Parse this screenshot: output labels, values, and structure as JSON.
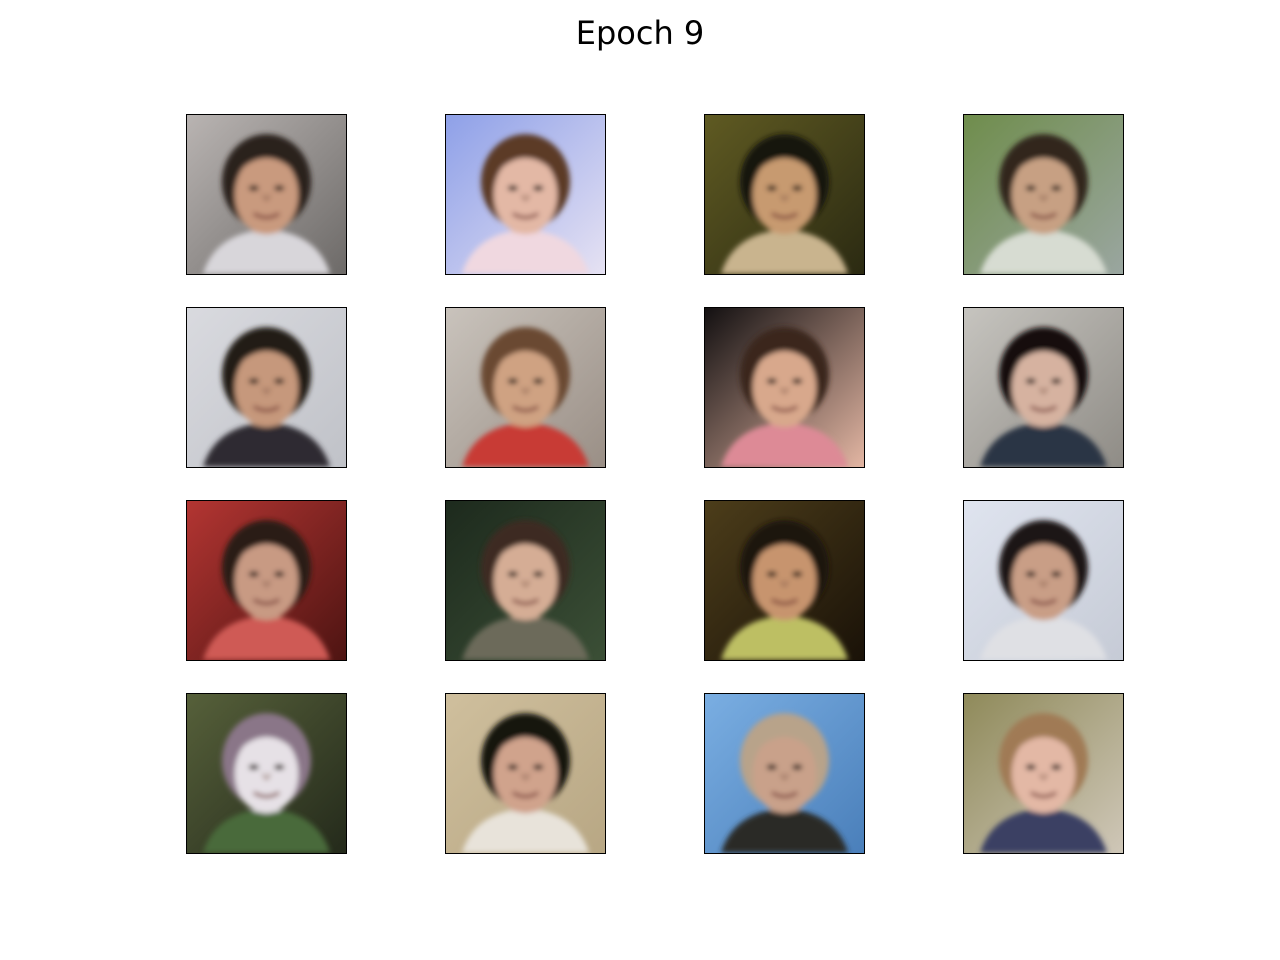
{
  "figure": {
    "title": "Epoch 9",
    "grid": {
      "rows": 4,
      "cols": 4
    },
    "samples": [
      {
        "bg": "#b9b4b2",
        "bg2": "#6d6a68",
        "skin": "#c99a7e",
        "hair": "#2a221d",
        "cloth": "#d8d6da"
      },
      {
        "bg": "#8ea0e8",
        "bg2": "#e6e2f3",
        "skin": "#e3b8a5",
        "hair": "#5b3a28",
        "cloth": "#f0d8e0"
      },
      {
        "bg": "#5f5a22",
        "bg2": "#2b2a12",
        "skin": "#c79a6f",
        "hair": "#17130d",
        "cloth": "#c9b48e"
      },
      {
        "bg": "#6f8d4c",
        "bg2": "#9aa6a0",
        "skin": "#c7a083",
        "hair": "#33251a",
        "cloth": "#d7dcd2"
      },
      {
        "bg": "#d9dadf",
        "bg2": "#c0c2c8",
        "skin": "#c6987b",
        "hair": "#221b16",
        "cloth": "#2d2c31"
      },
      {
        "bg": "#c9c3bc",
        "bg2": "#9a8f86",
        "skin": "#cfa282",
        "hair": "#6b4a33",
        "cloth": "#c83a36"
      },
      {
        "bg": "#131011",
        "bg2": "#e3b6a3",
        "skin": "#d8a88c",
        "hair": "#3b261b",
        "cloth": "#dd8a96"
      },
      {
        "bg": "#c6c4bf",
        "bg2": "#8f8c86",
        "skin": "#d6b2a0",
        "hair": "#15110f",
        "cloth": "#2b3445"
      },
      {
        "bg": "#b33532",
        "bg2": "#4e1412",
        "skin": "#c89a83",
        "hair": "#2b1b15",
        "cloth": "#cf5a55"
      },
      {
        "bg": "#1d2a1d",
        "bg2": "#3b4f36",
        "skin": "#d5ad95",
        "hair": "#3d2c22",
        "cloth": "#6c6a5a"
      },
      {
        "bg": "#4c3d1a",
        "bg2": "#1a1208",
        "skin": "#c7946e",
        "hair": "#1a130c",
        "cloth": "#bdbf63"
      },
      {
        "bg": "#dfe4ef",
        "bg2": "#c6cbd6",
        "skin": "#c99e86",
        "hair": "#1c1715",
        "cloth": "#dfe0e4"
      },
      {
        "bg": "#56603a",
        "bg2": "#242a1b",
        "skin": "#e6e1e6",
        "hair": "#8a7688",
        "cloth": "#4a6a3a"
      },
      {
        "bg": "#cfbf9d",
        "bg2": "#b8a784",
        "skin": "#d0a38c",
        "hair": "#19130f",
        "cloth": "#e8e3da"
      },
      {
        "bg": "#7aaee2",
        "bg2": "#4a7fba",
        "skin": "#c9a18a",
        "hair": "#b8a38a",
        "cloth": "#2b2a27"
      },
      {
        "bg": "#8f8a5a",
        "bg2": "#cfc7b8",
        "skin": "#e3b8a5",
        "hair": "#a07a55",
        "cloth": "#3a3f63"
      }
    ]
  }
}
